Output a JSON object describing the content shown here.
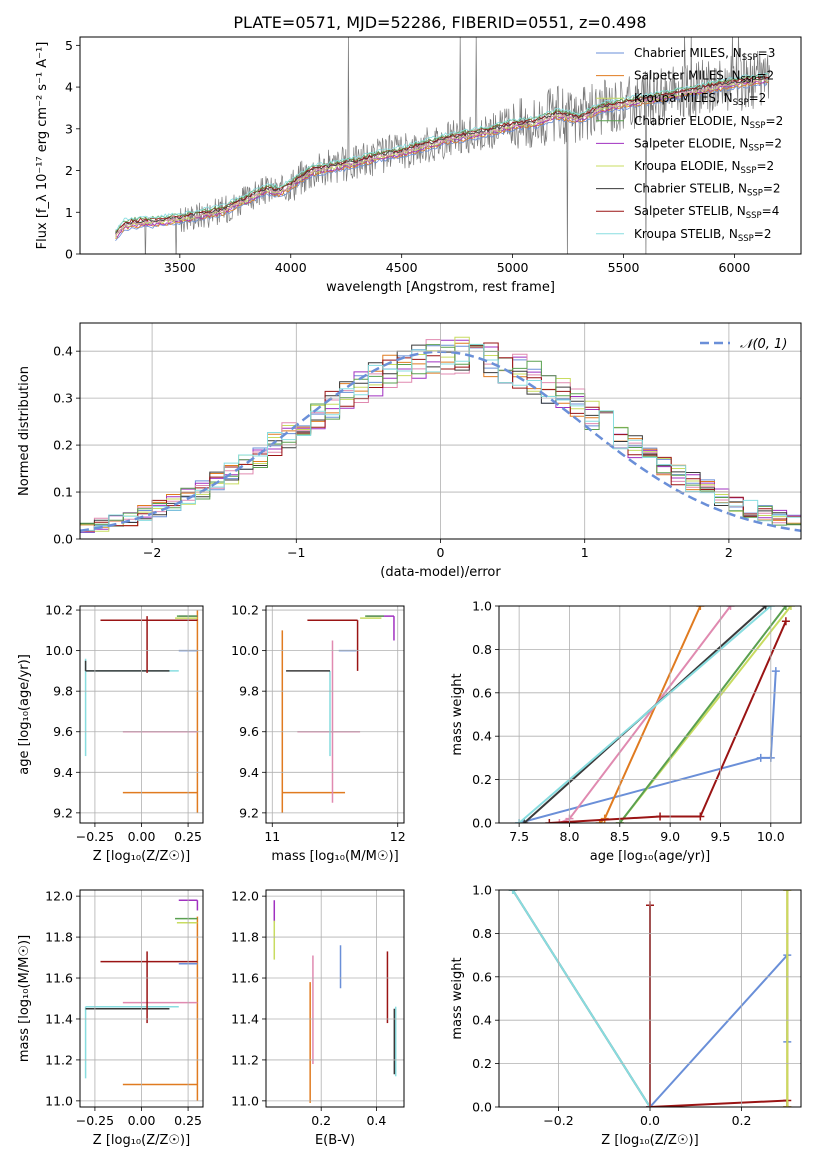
{
  "figure": {
    "title": "PLATE=0571, MJD=52286, FIBERID=0551, z=0.498"
  },
  "series_colors": [
    "#6a8fd8",
    "#e07b20",
    "#a030c0",
    "#c8dc60",
    "#e08ab0",
    "#3a3a3a",
    "#9a1414",
    "#5aa050",
    "#88dde0"
  ],
  "chart_data": [
    {
      "type": "line",
      "panel": "spectrum",
      "xlabel": "wavelength [Angstrom, rest frame]",
      "ylabel": "Flux [f_λ 10⁻¹⁷ erg cm⁻² s⁻¹ A⁻¹]",
      "xlim": [
        3050,
        6300
      ],
      "ylim": [
        0,
        5.2
      ],
      "xticks": [
        "3500",
        "4000",
        "4500",
        "5000",
        "5500",
        "6000"
      ],
      "yticks": [
        "0",
        "1",
        "2",
        "3",
        "4",
        "5"
      ],
      "legend_position": "right",
      "continuum_points": [
        [
          3200,
          0.4
        ],
        [
          3250,
          0.7
        ],
        [
          3300,
          0.75
        ],
        [
          3400,
          0.78
        ],
        [
          3500,
          0.85
        ],
        [
          3600,
          0.95
        ],
        [
          3700,
          1.05
        ],
        [
          3750,
          1.2
        ],
        [
          3800,
          1.3
        ],
        [
          3850,
          1.45
        ],
        [
          3900,
          1.55
        ],
        [
          3950,
          1.5
        ],
        [
          4000,
          1.65
        ],
        [
          4050,
          1.85
        ],
        [
          4100,
          2.0
        ],
        [
          4200,
          2.1
        ],
        [
          4300,
          2.2
        ],
        [
          4400,
          2.35
        ],
        [
          4500,
          2.45
        ],
        [
          4600,
          2.6
        ],
        [
          4700,
          2.75
        ],
        [
          4800,
          2.85
        ],
        [
          4900,
          2.95
        ],
        [
          5000,
          3.1
        ],
        [
          5100,
          3.15
        ],
        [
          5200,
          3.35
        ],
        [
          5300,
          3.25
        ],
        [
          5400,
          3.5
        ],
        [
          5500,
          3.6
        ],
        [
          5600,
          3.7
        ],
        [
          5700,
          3.8
        ],
        [
          5800,
          3.9
        ],
        [
          5900,
          4.0
        ],
        [
          6000,
          4.1
        ],
        [
          6150,
          4.2
        ]
      ],
      "series": [
        {
          "name": "Chabrier MILES, N_SSP=3",
          "label_main": "Chabrier MILES, N",
          "label_sub": "SSP",
          "label_tail": "=3"
        },
        {
          "name": "Salpeter MILES, N_SSP=2",
          "label_main": "Salpeter MILES, N",
          "label_sub": "SSP",
          "label_tail": "=2"
        },
        {
          "name": "Kroupa MILES, N_SSP=2",
          "label_main": "Kroupa MILES, N",
          "label_sub": "SSP",
          "label_tail": "=2"
        },
        {
          "name": "Chabrier ELODIE, N_SSP=2",
          "label_main": "Chabrier ELODIE, N",
          "label_sub": "SSP",
          "label_tail": "=2"
        },
        {
          "name": "Salpeter ELODIE, N_SSP=2",
          "label_main": "Salpeter ELODIE, N",
          "label_sub": "SSP",
          "label_tail": "=2"
        },
        {
          "name": "Kroupa ELODIE, N_SSP=2",
          "label_main": "Kroupa ELODIE, N",
          "label_sub": "SSP",
          "label_tail": "=2"
        },
        {
          "name": "Chabrier STELIB, N_SSP=2",
          "label_main": "Chabrier STELIB, N",
          "label_sub": "SSP",
          "label_tail": "=2"
        },
        {
          "name": "Salpeter STELIB, N_SSP=4",
          "label_main": "Salpeter STELIB, N",
          "label_sub": "SSP",
          "label_tail": "=4"
        },
        {
          "name": "Kroupa STELIB, N_SSP=2",
          "label_main": "Kroupa STELIB, N",
          "label_sub": "SSP",
          "label_tail": "=2"
        }
      ],
      "legend_series_colors": [
        "#6a8fd8",
        "#e07b20",
        "#c8dc60",
        "#5aa050",
        "#a030c0",
        "#c8dc60",
        "#3a3a3a",
        "#9a1414",
        "#88dde0"
      ]
    },
    {
      "type": "histogram",
      "panel": "residuals",
      "xlabel": "(data-model)/error",
      "ylabel": "Normed distribution",
      "xlim": [
        -2.5,
        2.5
      ],
      "ylim": [
        0,
        0.46
      ],
      "xticks": [
        "−2",
        "−1",
        "0",
        "1",
        "2"
      ],
      "yticks": [
        "0.0",
        "0.1",
        "0.2",
        "0.3",
        "0.4"
      ],
      "grid": true,
      "legend": {
        "label": "𝒩(0, 1)",
        "position": "top-right"
      },
      "bin_width": 0.1
    },
    {
      "type": "scatter",
      "panel": "age_vs_Z",
      "xlabel": "Z [log₁₀(Z/Z☉)]",
      "ylabel": "age  [log₁₀(age/yr)]",
      "xlim": [
        -0.33,
        0.33
      ],
      "ylim": [
        9.15,
        10.22
      ],
      "xticks": [
        "−0.25",
        "0.00",
        "0.25"
      ],
      "yticks": [
        "9.2",
        "9.4",
        "9.6",
        "9.8",
        "10.0",
        "10.2"
      ],
      "grid": true,
      "points": [
        {
          "color": "#e07b20",
          "x": 0.3,
          "y": 9.3,
          "xerr": [
            0.4,
            0.0
          ],
          "yerr": [
            0.1,
            0.9
          ]
        },
        {
          "color": "#e08ab0",
          "x": 0.3,
          "y": 9.6,
          "xerr": [
            0.4,
            0.0
          ],
          "yerr": [
            0.0,
            0.0
          ]
        },
        {
          "color": "#88dde0",
          "x": -0.3,
          "y": 9.9,
          "xerr": [
            0.0,
            0.5
          ],
          "yerr": [
            0.42,
            0.06
          ]
        },
        {
          "color": "#3a3a3a",
          "x": -0.3,
          "y": 9.9,
          "xerr": [
            0.0,
            0.45
          ],
          "yerr": [
            0.0,
            0.05
          ]
        },
        {
          "color": "#6a8fd8",
          "x": 0.3,
          "y": 10.0,
          "xerr": [
            0.1,
            0.0
          ],
          "yerr": [
            0.0,
            0.0
          ]
        },
        {
          "color": "#9a1414",
          "x": 0.03,
          "y": 10.15,
          "xerr": [
            0.25,
            0.27
          ],
          "yerr": [
            0.26,
            0.02
          ]
        },
        {
          "color": "#c8dc60",
          "x": 0.3,
          "y": 10.16,
          "xerr": [
            0.12,
            0.0
          ],
          "yerr": [
            0.0,
            0.0
          ]
        },
        {
          "color": "#a030c0",
          "x": 0.3,
          "y": 10.17,
          "xerr": [
            0.1,
            0.0
          ],
          "yerr": [
            0.0,
            0.0
          ]
        },
        {
          "color": "#5aa050",
          "x": 0.3,
          "y": 10.17,
          "xerr": [
            0.11,
            0.0
          ],
          "yerr": [
            0.0,
            0.0
          ]
        }
      ]
    },
    {
      "type": "scatter",
      "panel": "age_vs_mass",
      "xlabel": "mass [log₁₀(M/M☉)]",
      "ylabel": "",
      "xlim": [
        10.95,
        12.05
      ],
      "ylim": [
        9.15,
        10.22
      ],
      "xticks": [
        "11",
        "12"
      ],
      "yticks": [
        "9.2",
        "9.4",
        "9.6",
        "9.8",
        "10.0",
        "10.2"
      ],
      "grid": true,
      "points": [
        {
          "color": "#e07b20",
          "x": 11.08,
          "y": 9.3,
          "xerr": [
            0.0,
            0.5
          ],
          "yerr": [
            0.1,
            0.8
          ]
        },
        {
          "color": "#e08ab0",
          "x": 11.48,
          "y": 9.6,
          "xerr": [
            0.28,
            0.22
          ],
          "yerr": [
            0.35,
            0.45
          ]
        },
        {
          "color": "#88dde0",
          "x": 11.46,
          "y": 9.9,
          "xerr": [
            0.0,
            0.0
          ],
          "yerr": [
            0.42,
            0.0
          ]
        },
        {
          "color": "#3a3a3a",
          "x": 11.46,
          "y": 9.9,
          "xerr": [
            0.35,
            0.0
          ],
          "yerr": [
            0.0,
            0.0
          ]
        },
        {
          "color": "#6a8fd8",
          "x": 11.67,
          "y": 10.0,
          "xerr": [
            0.14,
            0.0
          ],
          "yerr": [
            0.0,
            0.0
          ]
        },
        {
          "color": "#9a1414",
          "x": 11.68,
          "y": 10.15,
          "xerr": [
            0.4,
            0.0
          ],
          "yerr": [
            0.25,
            0.0
          ]
        },
        {
          "color": "#c8dc60",
          "x": 11.87,
          "y": 10.16,
          "xerr": [
            0.17,
            0.0
          ],
          "yerr": [
            0.0,
            0.0
          ]
        },
        {
          "color": "#a030c0",
          "x": 11.97,
          "y": 10.17,
          "xerr": [
            0.22,
            0.0
          ],
          "yerr": [
            0.12,
            0.0
          ]
        },
        {
          "color": "#5aa050",
          "x": 11.89,
          "y": 10.17,
          "xerr": [
            0.15,
            0.0
          ],
          "yerr": [
            0.0,
            0.0
          ]
        }
      ]
    },
    {
      "type": "line",
      "panel": "massweight_vs_age",
      "xlabel": "age  [log₁₀(age/yr)]",
      "ylabel": "mass weight",
      "xlim": [
        7.3,
        10.3
      ],
      "ylim": [
        0,
        1.0
      ],
      "xticks": [
        "7.5",
        "8.0",
        "8.5",
        "9.0",
        "9.5",
        "10.0"
      ],
      "yticks": [
        "0.0",
        "0.2",
        "0.4",
        "0.6",
        "0.8",
        "1.0"
      ],
      "grid": true,
      "series": [
        {
          "color": "#6a8fd8",
          "x": [
            7.5,
            9.9,
            10.0,
            10.05
          ],
          "y": [
            0.0,
            0.3,
            0.3,
            0.7
          ]
        },
        {
          "color": "#e07b20",
          "x": [
            8.3,
            8.35,
            9.3
          ],
          "y": [
            0.0,
            0.02,
            1.0
          ]
        },
        {
          "color": "#e08ab0",
          "x": [
            7.9,
            8.0,
            9.6
          ],
          "y": [
            0.0,
            0.02,
            1.0
          ]
        },
        {
          "color": "#3a3a3a",
          "x": [
            7.55,
            9.95
          ],
          "y": [
            0.0,
            1.0
          ]
        },
        {
          "color": "#88dde0",
          "x": [
            7.5,
            10.0
          ],
          "y": [
            0.0,
            1.0
          ]
        },
        {
          "color": "#c8dc60",
          "x": [
            8.5,
            10.2
          ],
          "y": [
            0.0,
            1.0
          ]
        },
        {
          "color": "#5aa050",
          "x": [
            8.5,
            10.15
          ],
          "y": [
            0.0,
            1.0
          ]
        },
        {
          "color": "#9a1414",
          "x": [
            7.8,
            8.9,
            9.3,
            10.15
          ],
          "y": [
            0.0,
            0.03,
            0.03,
            0.93
          ]
        }
      ]
    },
    {
      "type": "scatter",
      "panel": "mass_vs_Z",
      "xlabel": "Z [log₁₀(Z/Z☉)]",
      "ylabel": "mass [log₁₀(M/M☉)]",
      "xlim": [
        -0.33,
        0.33
      ],
      "ylim": [
        10.97,
        12.03
      ],
      "xticks": [
        "−0.25",
        "0.00",
        "0.25"
      ],
      "yticks": [
        "11.0",
        "11.2",
        "11.4",
        "11.6",
        "11.8",
        "12.0"
      ],
      "grid": true,
      "points": [
        {
          "color": "#e07b20",
          "x": 0.3,
          "y": 11.08,
          "xerr": [
            0.4,
            0.0
          ],
          "yerr": [
            0.08,
            0.82
          ]
        },
        {
          "color": "#88dde0",
          "x": -0.3,
          "y": 11.46,
          "xerr": [
            0.0,
            0.5
          ],
          "yerr": [
            0.35,
            0.0
          ]
        },
        {
          "color": "#3a3a3a",
          "x": -0.3,
          "y": 11.45,
          "xerr": [
            0.0,
            0.45
          ],
          "yerr": [
            0.0,
            0.0
          ]
        },
        {
          "color": "#e08ab0",
          "x": 0.3,
          "y": 11.48,
          "xerr": [
            0.4,
            0.0
          ],
          "yerr": [
            0.0,
            0.0
          ]
        },
        {
          "color": "#6a8fd8",
          "x": 0.3,
          "y": 11.67,
          "xerr": [
            0.1,
            0.0
          ],
          "yerr": [
            0.0,
            0.0
          ]
        },
        {
          "color": "#9a1414",
          "x": 0.03,
          "y": 11.68,
          "xerr": [
            0.25,
            0.27
          ],
          "yerr": [
            0.3,
            0.05
          ]
        },
        {
          "color": "#c8dc60",
          "x": 0.3,
          "y": 11.87,
          "xerr": [
            0.11,
            0.0
          ],
          "yerr": [
            0.0,
            0.0
          ]
        },
        {
          "color": "#5aa050",
          "x": 0.3,
          "y": 11.89,
          "xerr": [
            0.12,
            0.0
          ],
          "yerr": [
            0.0,
            0.0
          ]
        },
        {
          "color": "#a030c0",
          "x": 0.3,
          "y": 11.98,
          "xerr": [
            0.1,
            0.0
          ],
          "yerr": [
            0.05,
            0.0
          ]
        }
      ]
    },
    {
      "type": "scatter",
      "panel": "mass_vs_EBV",
      "xlabel": "E(B-V)",
      "ylabel": "",
      "xlim": [
        0.0,
        0.5
      ],
      "ylim": [
        10.97,
        12.03
      ],
      "xticks": [
        "0.2",
        "0.4"
      ],
      "yticks": [
        "11.0",
        "11.2",
        "11.4",
        "11.6",
        "11.8",
        "12.0"
      ],
      "grid": true,
      "points": [
        {
          "color": "#a030c0",
          "x": 0.03,
          "y": 11.92,
          "yerr": [
            0.05,
            0.06
          ]
        },
        {
          "color": "#c8dc60",
          "x": 0.03,
          "y": 11.78,
          "yerr": [
            0.09,
            0.1
          ]
        },
        {
          "color": "#e07b20",
          "x": 0.16,
          "y": 11.28,
          "yerr": [
            0.29,
            0.3
          ]
        },
        {
          "color": "#e08ab0",
          "x": 0.17,
          "y": 11.44,
          "yerr": [
            0.26,
            0.27
          ]
        },
        {
          "color": "#6a8fd8",
          "x": 0.27,
          "y": 11.66,
          "yerr": [
            0.11,
            0.1
          ]
        },
        {
          "color": "#9a1414",
          "x": 0.44,
          "y": 11.55,
          "yerr": [
            0.17,
            0.18
          ]
        },
        {
          "color": "#88dde0",
          "x": 0.47,
          "y": 11.3,
          "yerr": [
            0.18,
            0.16
          ]
        },
        {
          "color": "#3a3a3a",
          "x": 0.465,
          "y": 11.3,
          "yerr": [
            0.17,
            0.15
          ]
        }
      ]
    },
    {
      "type": "line",
      "panel": "massweight_vs_Z",
      "xlabel": "Z [log₁₀(Z/Z☉)]",
      "ylabel": "mass weight",
      "xlim": [
        -0.33,
        0.33
      ],
      "ylim": [
        0,
        1.0
      ],
      "xticks": [
        "−0.2",
        "0.0",
        "0.2"
      ],
      "yticks": [
        "0.0",
        "0.2",
        "0.4",
        "0.6",
        "0.8",
        "1.0"
      ],
      "grid": true,
      "series": [
        {
          "color": "#3a3a3a",
          "x": [
            -0.3,
            0.0
          ],
          "y": [
            1.0,
            0.0
          ]
        },
        {
          "color": "#88dde0",
          "x": [
            -0.3,
            0.0
          ],
          "y": [
            1.0,
            0.0
          ]
        },
        {
          "color": "#6a8fd8",
          "x": [
            0.0,
            0.3,
            0.3
          ],
          "y": [
            0.0,
            0.7,
            0.3
          ]
        },
        {
          "color": "#9a1414",
          "x": [
            0.0,
            0.0,
            0.3,
            0.3
          ],
          "y": [
            0.93,
            0.0,
            0.03,
            0.0
          ]
        },
        {
          "color": "#e07b20",
          "x": [
            0.3,
            0.3
          ],
          "y": [
            0.0,
            1.0
          ]
        },
        {
          "color": "#c8dc60",
          "x": [
            0.3,
            0.3
          ],
          "y": [
            0.0,
            1.0
          ]
        }
      ]
    }
  ]
}
